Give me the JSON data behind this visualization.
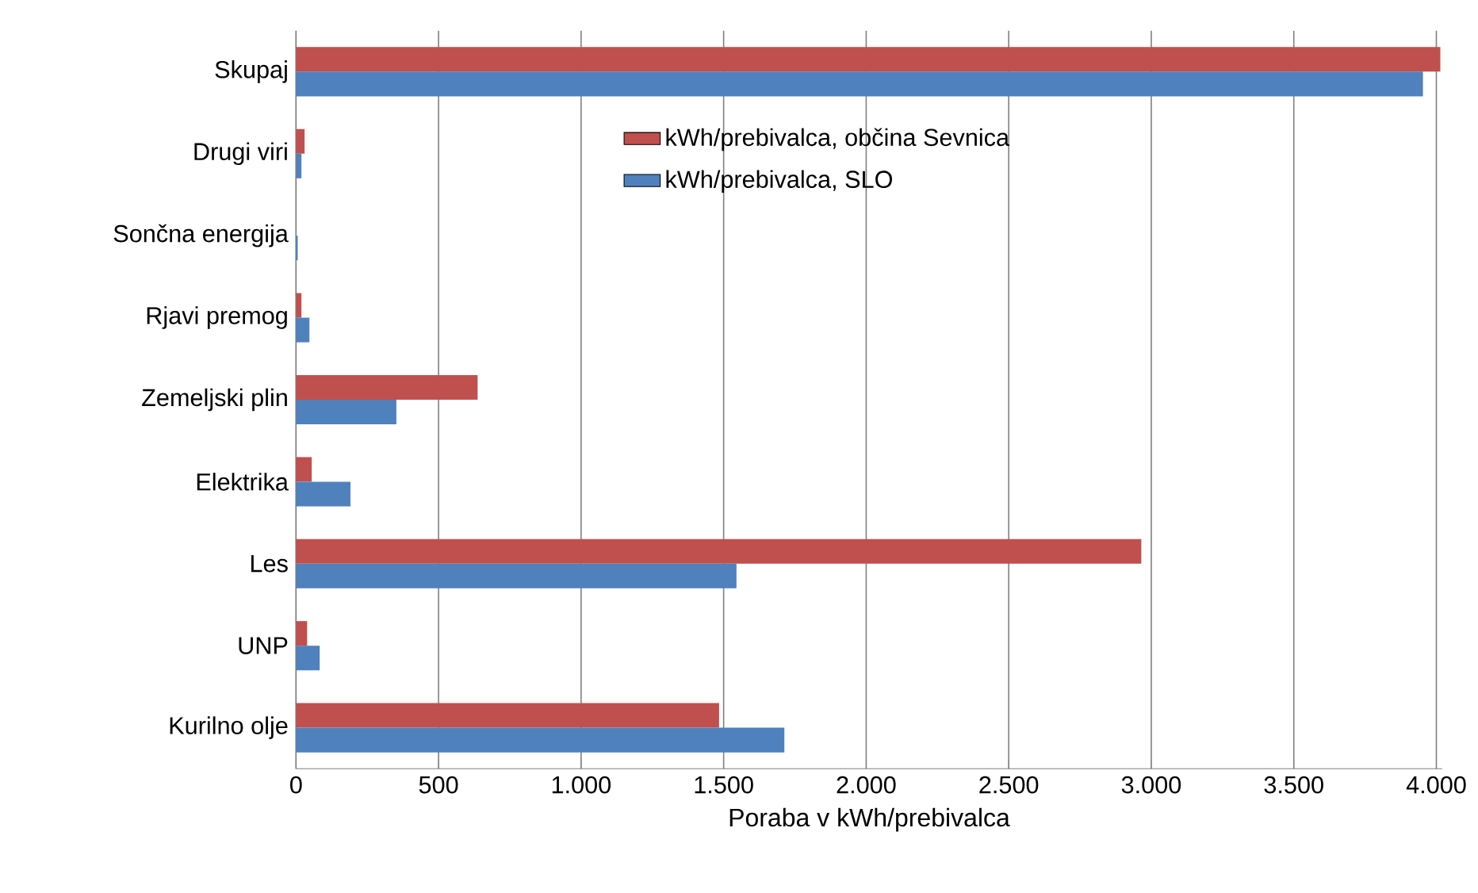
{
  "chart_data": {
    "type": "bar",
    "orientation": "horizontal",
    "xlabel": "Poraba v kWh/prebivalca",
    "categories": [
      "Skupaj",
      "Drugi viri",
      "Sončna energija",
      "Rjavi premog",
      "Zemeljski plin",
      "Elektrika",
      "Les",
      "UNP",
      "Kurilno olje"
    ],
    "series": [
      {
        "name": "kWh/prebivalca, občina Sevnica",
        "color": "#c0504d",
        "values": [
          4014,
          30,
          0,
          19,
          637,
          55,
          2965,
          39,
          1484
        ]
      },
      {
        "name": "kWh/prebivalca, SLO",
        "color": "#4f81bd",
        "values": [
          3953,
          19,
          6,
          47,
          352,
          191,
          1545,
          83,
          1713
        ]
      }
    ],
    "xlim": [
      0,
      4020
    ],
    "xticks": [
      0,
      {
        "value": 500,
        "label": "500"
      },
      {
        "value": 1000,
        "label": "1.000"
      },
      {
        "value": 1500,
        "label": "1.500"
      },
      {
        "value": 2000,
        "label": "2.000"
      },
      {
        "value": 2500,
        "label": "2.500"
      },
      {
        "value": 3000,
        "label": "3.000"
      },
      {
        "value": 3500,
        "label": "3.500"
      },
      {
        "value": 4000,
        "label": "4.000"
      }
    ],
    "grid": "x",
    "legend": "top"
  }
}
